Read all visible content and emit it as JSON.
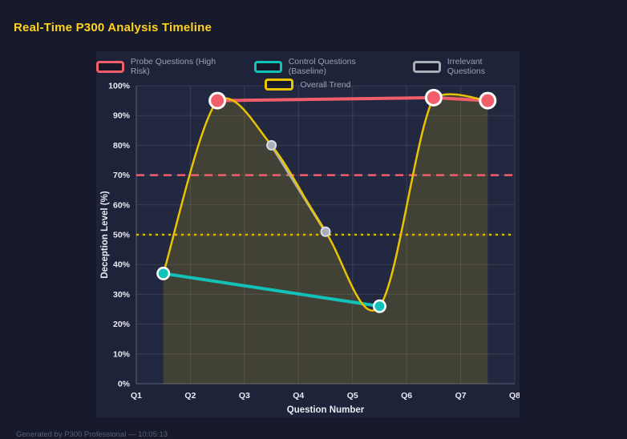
{
  "page": {
    "title": "Real-Time P300 Analysis Timeline",
    "footer": "Generated by P300 Professional — 10:05:13"
  },
  "colors": {
    "page_bg": "#161a2c",
    "panel_bg": "#1e2339",
    "plot_bg": "#232841",
    "grid": "rgba(255,255,255,0.10)",
    "axis_line": "rgba(255,255,255,0.28)",
    "axis_text": "#e9ecf4",
    "legend_text": "#9aa1b4",
    "title": "#ffd21e",
    "footer_text": "#596074",
    "marker_ring": "#ffffff"
  },
  "chart_data": {
    "type": "line",
    "title": "Real-Time P300 Analysis Timeline",
    "xlabel": "Question Number",
    "ylabel": "Deception Level (%)",
    "x_range": [
      1,
      8
    ],
    "y_range": [
      0,
      100
    ],
    "grid": true,
    "legend_position": "top",
    "x_ticks": {
      "values": [
        1,
        2,
        3,
        4,
        5,
        6,
        7,
        8
      ],
      "labels": [
        "Q1",
        "Q2",
        "Q3",
        "Q4",
        "Q5",
        "Q6",
        "Q7",
        "Q8"
      ]
    },
    "y_ticks": {
      "values": [
        0,
        10,
        20,
        30,
        40,
        50,
        60,
        70,
        80,
        90,
        100
      ],
      "labels": [
        "0%",
        "10%",
        "20%",
        "30%",
        "40%",
        "50%",
        "60%",
        "70%",
        "80%",
        "90%",
        "100%"
      ]
    },
    "series": [
      {
        "name": "Probe Questions (High Risk)",
        "color": "#f25f6b",
        "x": [
          2.5,
          6.5,
          7.5
        ],
        "y": [
          95,
          96,
          95
        ],
        "line_width": 4,
        "point_radius": 8,
        "point_ring": 3,
        "ring_color": "#ffffff",
        "smooth": false
      },
      {
        "name": "Control Questions (Baseline)",
        "color": "#12c2b9",
        "x": [
          1.5,
          5.5
        ],
        "y": [
          37,
          26
        ],
        "line_width": 4,
        "point_radius": 6,
        "point_ring": 2.5,
        "ring_color": "#ffffff",
        "smooth": false
      },
      {
        "name": "Irrelevant Questions",
        "color": "#a9aeb7",
        "x": [
          3.5,
          4.5
        ],
        "y": [
          80,
          51
        ],
        "line_width": 3.5,
        "point_radius": 4.5,
        "point_ring": 2,
        "ring_color": "#d9dde3",
        "smooth": false
      },
      {
        "name": "Overall Trend",
        "color": "#e9c400",
        "x": [
          1.5,
          2.5,
          3.5,
          4.5,
          5.5,
          6.5,
          7.5
        ],
        "y": [
          37,
          95,
          80,
          51,
          26,
          96,
          95
        ],
        "line_width": 2.5,
        "point_radius": 0,
        "point_ring": 0,
        "ring_color": "#ffffff",
        "smooth": true,
        "fill": "rgba(233,196,0,0.16)"
      }
    ],
    "thresholds": [
      {
        "y": 70,
        "color": "#f25f6b",
        "dash": "10 7",
        "width": 2.5
      },
      {
        "y": 50,
        "color": "#d9b70a",
        "dash": "3 5",
        "width": 2.5
      }
    ]
  }
}
